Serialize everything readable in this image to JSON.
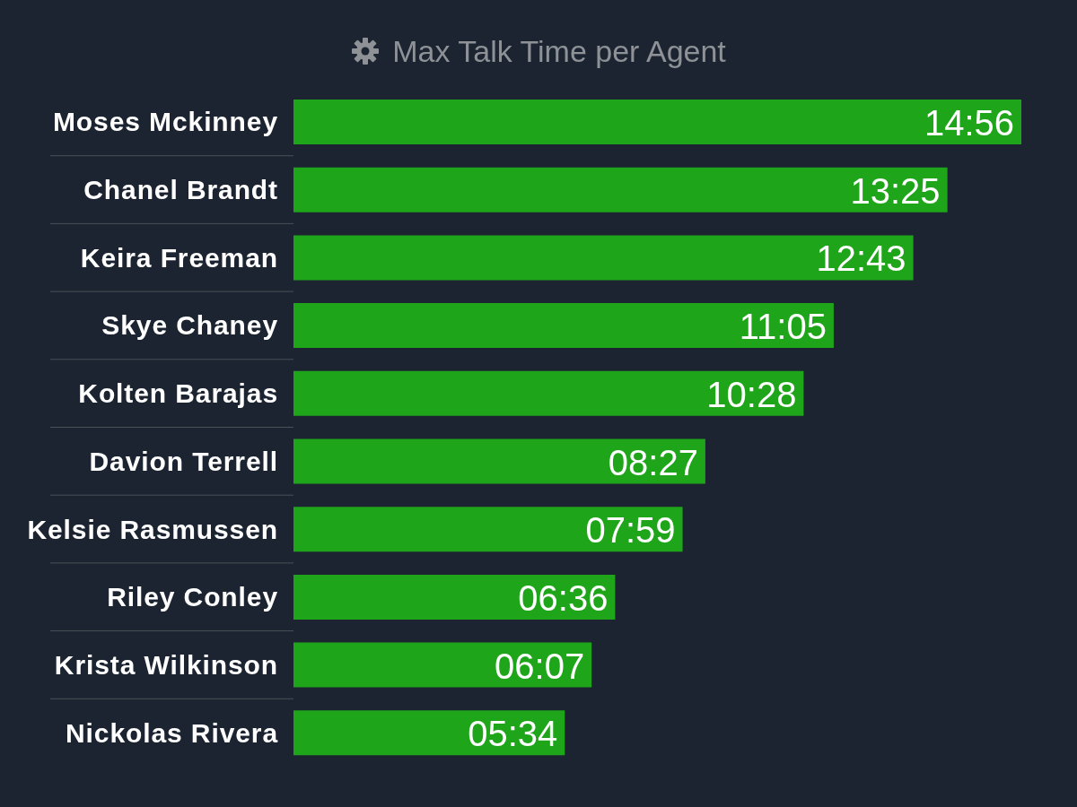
{
  "chart_data": {
    "type": "bar",
    "orientation": "horizontal",
    "title": "Max Talk Time per Agent",
    "categories": [
      "Moses Mckinney",
      "Chanel Brandt",
      "Keira Freeman",
      "Skye Chaney",
      "Kolten Barajas",
      "Davion Terrell",
      "Kelsie Rasmussen",
      "Riley Conley",
      "Krista Wilkinson",
      "Nickolas Rivera"
    ],
    "values": [
      896,
      805,
      763,
      665,
      628,
      507,
      479,
      396,
      367,
      334
    ],
    "value_labels": [
      "14:56",
      "13:25",
      "12:43",
      "11:05",
      "10:28",
      "08:27",
      "07:59",
      "06:36",
      "06:07",
      "05:34"
    ],
    "color": "#1fa51a"
  }
}
